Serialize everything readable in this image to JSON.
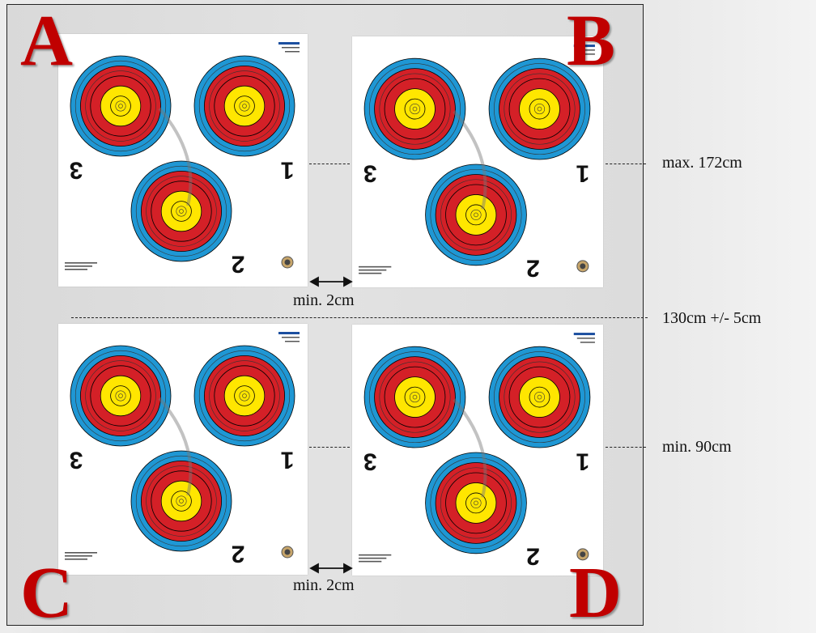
{
  "panels": [
    {
      "letter": "A"
    },
    {
      "letter": "B"
    },
    {
      "letter": "C"
    },
    {
      "letter": "D"
    }
  ],
  "target_numbers": [
    "3",
    "1",
    "2"
  ],
  "measurements": {
    "max_height": "max. 172cm",
    "center_height": "130cm +/- 5cm",
    "min_height": "min. 90cm",
    "gap_top": "min. 2cm",
    "gap_bottom": "min. 2cm"
  },
  "colors": {
    "letters": "#c00000",
    "ring_blue": "#1f97d4",
    "ring_red": "#d42027",
    "ring_gold": "#ffe600",
    "ring_edge": "#000000"
  }
}
